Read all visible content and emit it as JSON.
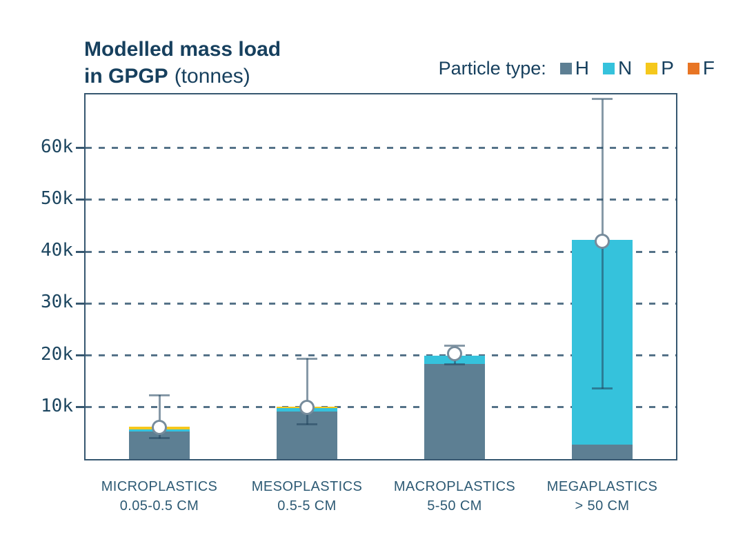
{
  "title": {
    "line1": "Modelled mass load",
    "line2_bold": "in GPGP",
    "line2_rest": "(tonnes)"
  },
  "legend": {
    "label": "Particle type:"
  },
  "colors": {
    "text": "#17405E",
    "axis": "#35566F",
    "grid": "#3F627C",
    "error_bar": "rgba(35,70,95,0.55)",
    "background": "#FFFFFF"
  },
  "chart_data": {
    "type": "bar",
    "stacked": true,
    "title": "Modelled mass load in GPGP (tonnes)",
    "unit": "tonnes",
    "legend_title": "Particle type:",
    "legend_position": "top-right",
    "gridlines": "dashed-horizontal",
    "categories": [
      {
        "label": "MICROPLASTICS",
        "sublabel": "0.05-0.5 CM"
      },
      {
        "label": "MESOPLASTICS",
        "sublabel": "0.5-5 CM"
      },
      {
        "label": "MACROPLASTICS",
        "sublabel": "5-50 CM"
      },
      {
        "label": "MEGAPLASTICS",
        "sublabel": "> 50 CM"
      }
    ],
    "series": [
      {
        "name": "H",
        "color": "#5D7F93",
        "values": [
          5350,
          9200,
          18300,
          2800
        ]
      },
      {
        "name": "N",
        "color": "#35C2DC",
        "values": [
          300,
          650,
          1600,
          39500
        ]
      },
      {
        "name": "P",
        "color": "#F5C81C",
        "values": [
          650,
          240,
          0,
          0
        ]
      },
      {
        "name": "F",
        "color": "#E87524",
        "values": [
          0,
          0,
          0,
          0
        ]
      }
    ],
    "totals": [
      6300,
      10090,
      19900,
      42300
    ],
    "error_bars": [
      {
        "center": 6100,
        "low": 4000,
        "high": 12300
      },
      {
        "center": 10000,
        "low": 6700,
        "high": 19400
      },
      {
        "center": 20300,
        "low": 18300,
        "high": 21800
      },
      {
        "center": 42000,
        "low": 13600,
        "high": 69400
      }
    ],
    "y_axis": {
      "tick_labels": [
        "10k",
        "20k",
        "30k",
        "40k",
        "50k",
        "60k"
      ],
      "tick_values": [
        10000,
        20000,
        30000,
        40000,
        50000,
        60000
      ],
      "range": [
        0,
        70300
      ]
    }
  }
}
